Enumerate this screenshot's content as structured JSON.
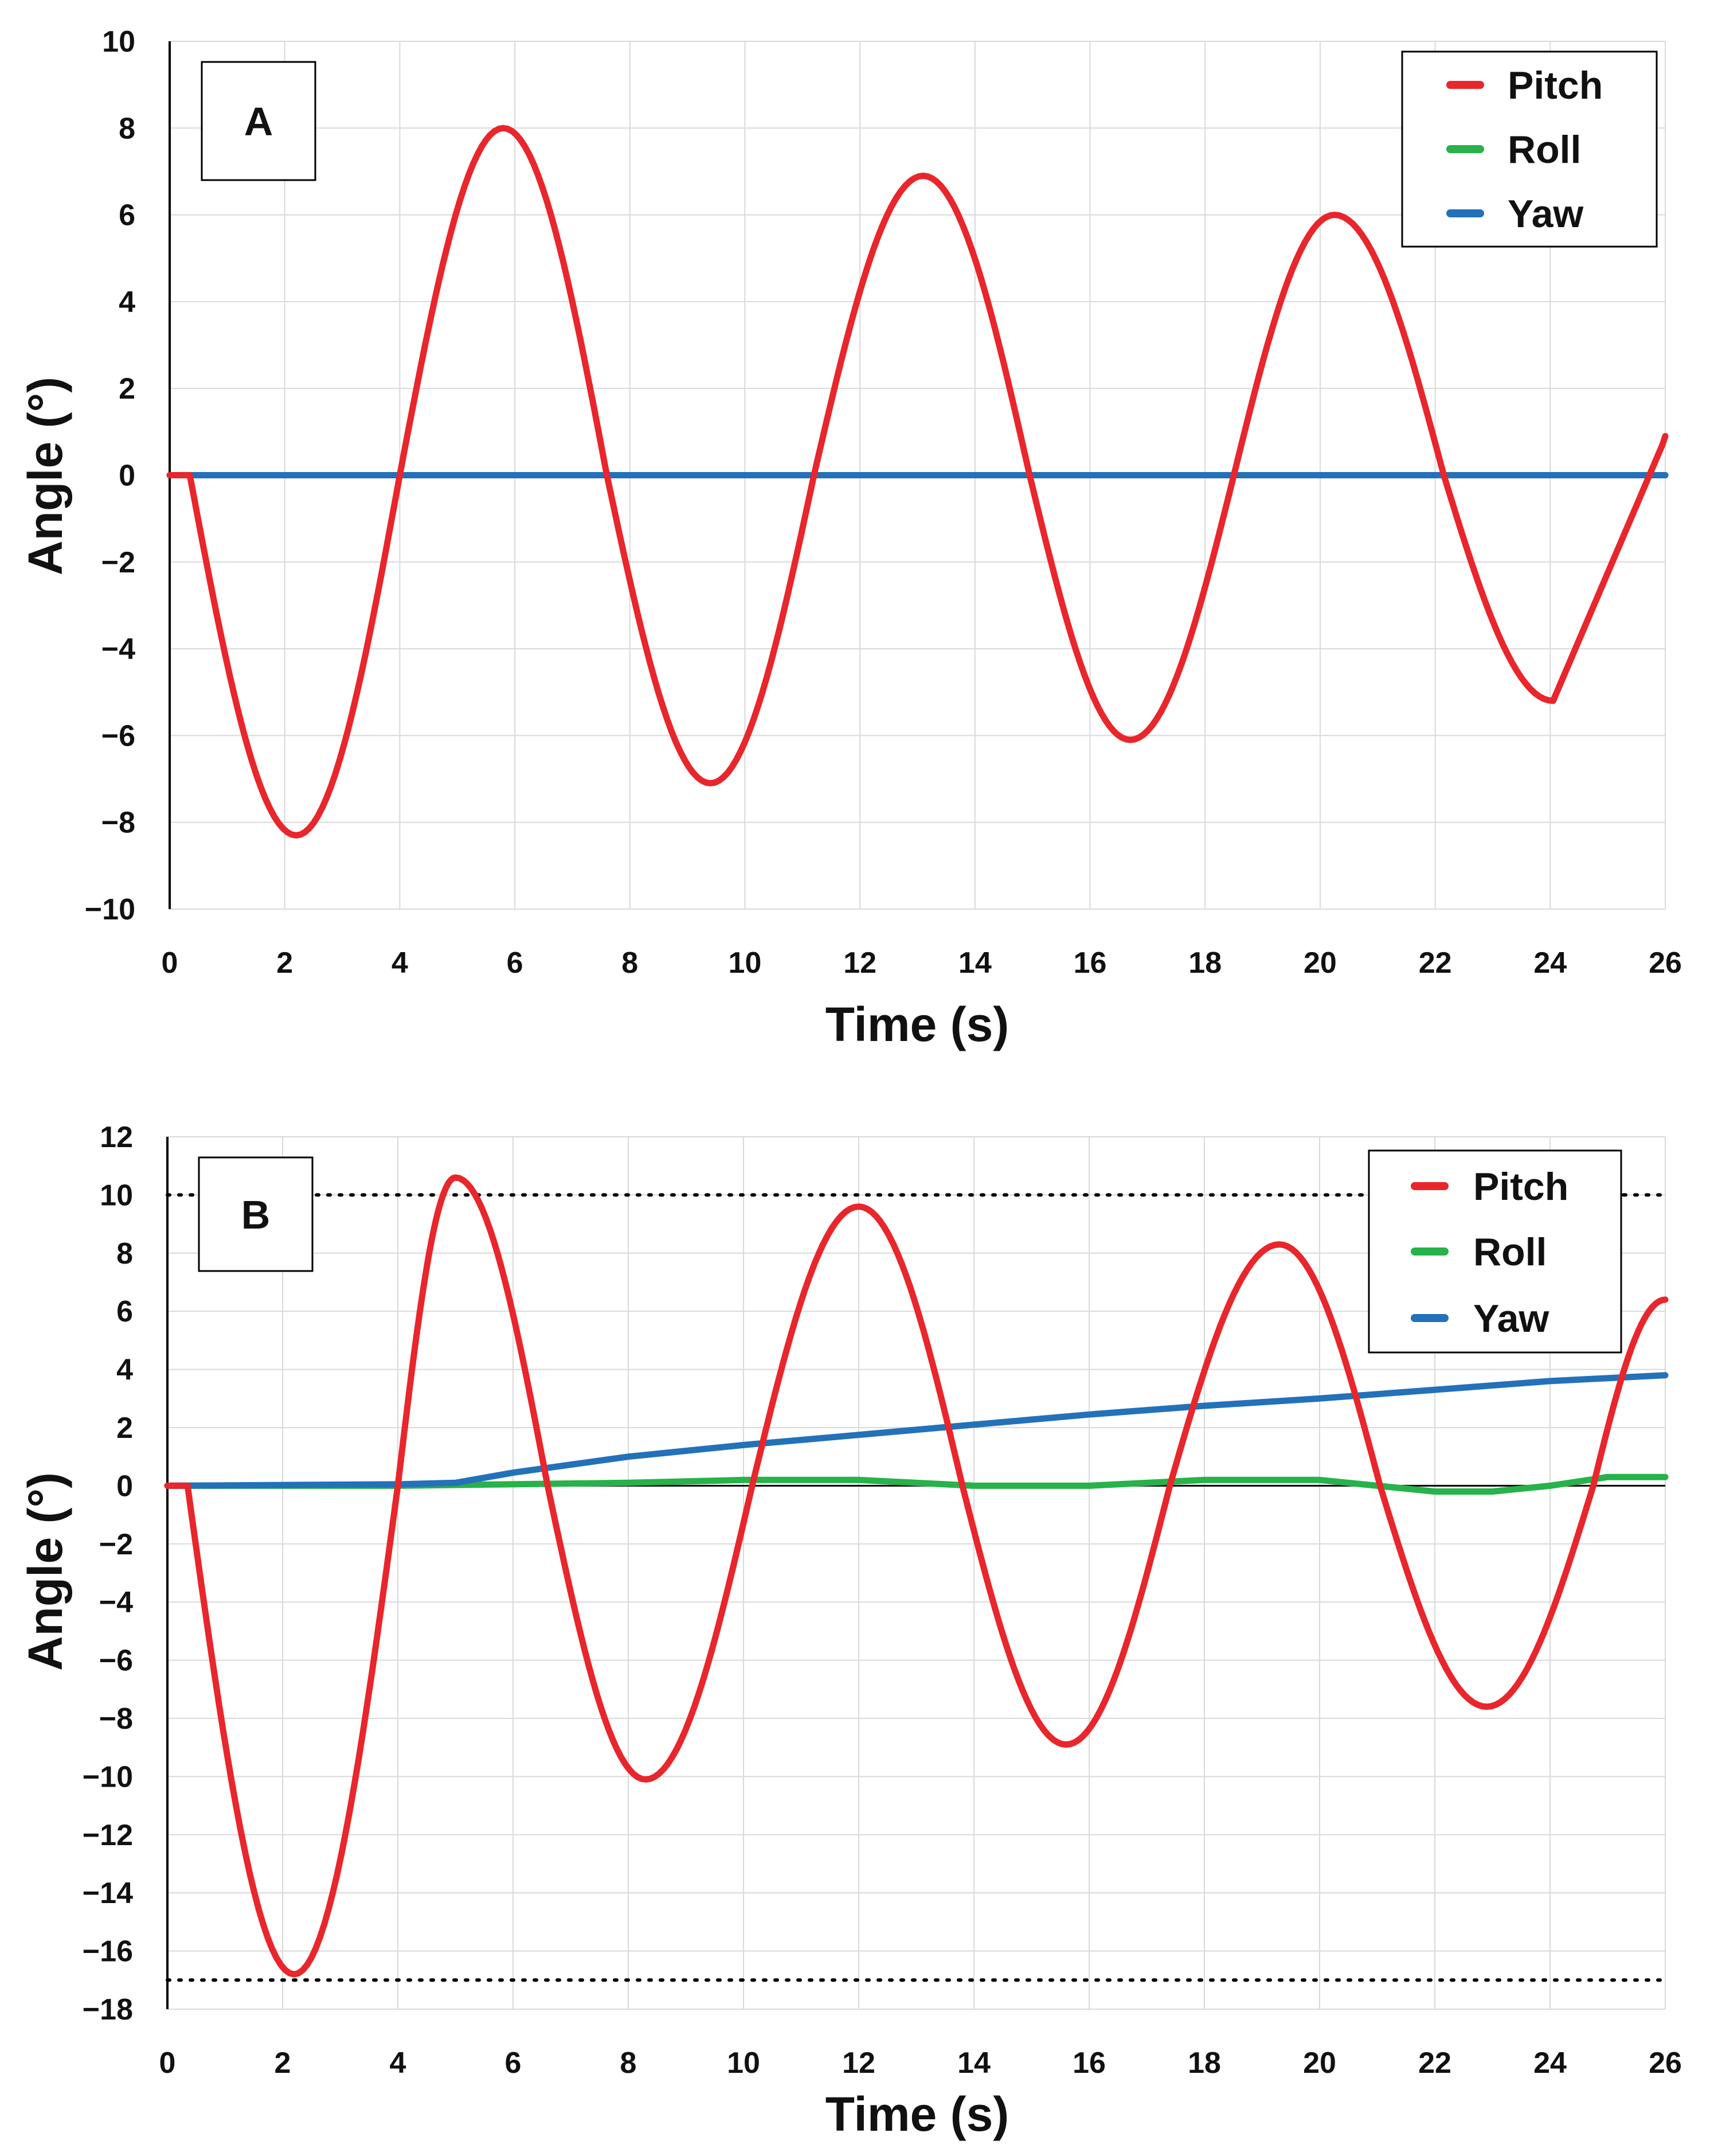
{
  "colors": {
    "pitch": "#e8262b",
    "roll": "#27b24a",
    "yaw": "#2371b9"
  },
  "chart_data": [
    {
      "panel": "A",
      "type": "line",
      "title": "",
      "xlabel": "Time (s)",
      "ylabel": "Angle (°)",
      "xlim": [
        0,
        26
      ],
      "ylim": [
        -10,
        10
      ],
      "xticks": [
        0,
        2,
        4,
        6,
        8,
        10,
        12,
        14,
        16,
        18,
        20,
        22,
        24,
        26
      ],
      "yticks": [
        -10,
        -8,
        -6,
        -4,
        -2,
        0,
        2,
        4,
        6,
        8,
        10
      ],
      "x_tick_labels": [
        "0",
        "2",
        "4",
        "6",
        "8",
        "10",
        "12",
        "14",
        "16",
        "18",
        "20",
        "22",
        "24",
        "26"
      ],
      "y_tick_labels": [
        "−10",
        "−8",
        "−6",
        "−4",
        "−2",
        "0",
        "2",
        "4",
        "6",
        "8",
        "10"
      ],
      "grid": true,
      "legend_position": "top-right",
      "reference_lines": [],
      "series": [
        {
          "name": "Pitch",
          "color": "#e8262b",
          "x": [
            0,
            0.35,
            2.2,
            4.0,
            5.8,
            7.6,
            9.4,
            11.2,
            13.1,
            14.95,
            16.7,
            18.5,
            20.25,
            22.15,
            24.05,
            25.95,
            26
          ],
          "y": [
            0,
            0,
            -8.3,
            0,
            8.0,
            0,
            -7.1,
            0,
            6.9,
            0,
            -6.1,
            0,
            6.0,
            0,
            -5.2,
            0.7,
            0.9
          ]
        },
        {
          "name": "Roll",
          "color": "#27b24a",
          "x": [
            0,
            26
          ],
          "y": [
            0,
            0
          ]
        },
        {
          "name": "Yaw",
          "color": "#2371b9",
          "x": [
            0,
            26
          ],
          "y": [
            0,
            0
          ]
        }
      ]
    },
    {
      "panel": "B",
      "type": "line",
      "title": "",
      "xlabel": "Time (s)",
      "ylabel": "Angle (°)",
      "xlim": [
        0,
        26
      ],
      "ylim": [
        -18,
        12
      ],
      "xticks": [
        0,
        2,
        4,
        6,
        8,
        10,
        12,
        14,
        16,
        18,
        20,
        22,
        24,
        26
      ],
      "yticks": [
        -18,
        -16,
        -14,
        -12,
        -10,
        -8,
        -6,
        -4,
        -2,
        0,
        2,
        4,
        6,
        8,
        10,
        12
      ],
      "x_tick_labels": [
        "0",
        "2",
        "4",
        "6",
        "8",
        "10",
        "12",
        "14",
        "16",
        "18",
        "20",
        "22",
        "24",
        "26"
      ],
      "y_tick_labels": [
        "−18",
        "−16",
        "−14",
        "−12",
        "−10",
        "−8",
        "−6",
        "−4",
        "−2",
        "0",
        "2",
        "4",
        "6",
        "8",
        "10",
        "12"
      ],
      "grid": true,
      "legend_position": "top-right",
      "reference_lines": [
        10,
        -17
      ],
      "series": [
        {
          "name": "Pitch",
          "color": "#e8262b",
          "x": [
            0,
            0.35,
            2.2,
            4.0,
            5.0,
            6.6,
            8.3,
            10.15,
            12.0,
            13.8,
            15.6,
            17.4,
            19.3,
            21.05,
            22.9,
            24.75,
            26
          ],
          "y": [
            0,
            0,
            -16.8,
            0,
            10.6,
            0,
            -10.1,
            0,
            9.6,
            0,
            -8.9,
            0,
            8.3,
            0,
            -7.6,
            0,
            6.4
          ]
        },
        {
          "name": "Roll",
          "color": "#27b24a",
          "x": [
            0,
            4,
            8,
            10,
            12,
            14,
            16,
            18,
            20,
            22,
            23,
            24,
            25,
            26
          ],
          "y": [
            0,
            0,
            0.1,
            0.2,
            0.2,
            0,
            0,
            0.2,
            0.2,
            -0.2,
            -0.2,
            0,
            0.3,
            0.3
          ]
        },
        {
          "name": "Yaw",
          "color": "#2371b9",
          "x": [
            0,
            4,
            5,
            6,
            8,
            10,
            12,
            14,
            16,
            18,
            20,
            22,
            24,
            26
          ],
          "y": [
            0,
            0.05,
            0.1,
            0.45,
            1.0,
            1.4,
            1.75,
            2.1,
            2.45,
            2.75,
            3.0,
            3.3,
            3.6,
            3.8
          ]
        }
      ]
    }
  ]
}
